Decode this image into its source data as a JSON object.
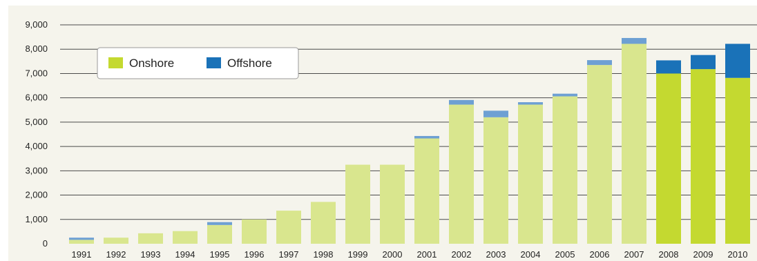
{
  "chart_data": {
    "type": "bar",
    "stacked": true,
    "title": "",
    "xlabel": "",
    "ylabel": "",
    "ylim": [
      0,
      9000
    ],
    "yticks": [
      "0",
      "1,000",
      "2,000",
      "3,000",
      "4,000",
      "5,000",
      "6,000",
      "7,000",
      "8,000",
      "9,000"
    ],
    "ytick_values": [
      0,
      1000,
      2000,
      3000,
      4000,
      5000,
      6000,
      7000,
      8000,
      9000
    ],
    "grid": "horizontal",
    "legend_position": "top-left",
    "categories": [
      "1991",
      "1992",
      "1993",
      "1994",
      "1995",
      "1996",
      "1997",
      "1998",
      "1999",
      "2000",
      "2001",
      "2002",
      "2003",
      "2004",
      "2005",
      "2006",
      "2007",
      "2008",
      "2009",
      "2010"
    ],
    "series": [
      {
        "name": "Onshore",
        "color": "#c4d930",
        "values": [
          160,
          250,
          430,
          520,
          770,
          1000,
          1360,
          1720,
          3250,
          3250,
          4330,
          5720,
          5200,
          5720,
          6060,
          7350,
          8220,
          7000,
          7180,
          6820
        ]
      },
      {
        "name": "Offshore",
        "color": "#1a72b8",
        "values": [
          90,
          0,
          0,
          0,
          120,
          0,
          0,
          0,
          0,
          0,
          100,
          190,
          270,
          100,
          110,
          200,
          240,
          540,
          580,
          1400
        ]
      }
    ],
    "faded_categories": [
      "1991",
      "1992",
      "1993",
      "1994",
      "1995",
      "1996",
      "1997",
      "1998",
      "1999",
      "2000",
      "2001",
      "2002",
      "2003",
      "2004",
      "2005",
      "2006",
      "2007"
    ],
    "faded_colors": {
      "Onshore": "#d9e68e",
      "Offshore": "#6ea0d3"
    },
    "background_color": "#f5f4ec",
    "gridline_color": "#4a4a4a"
  }
}
